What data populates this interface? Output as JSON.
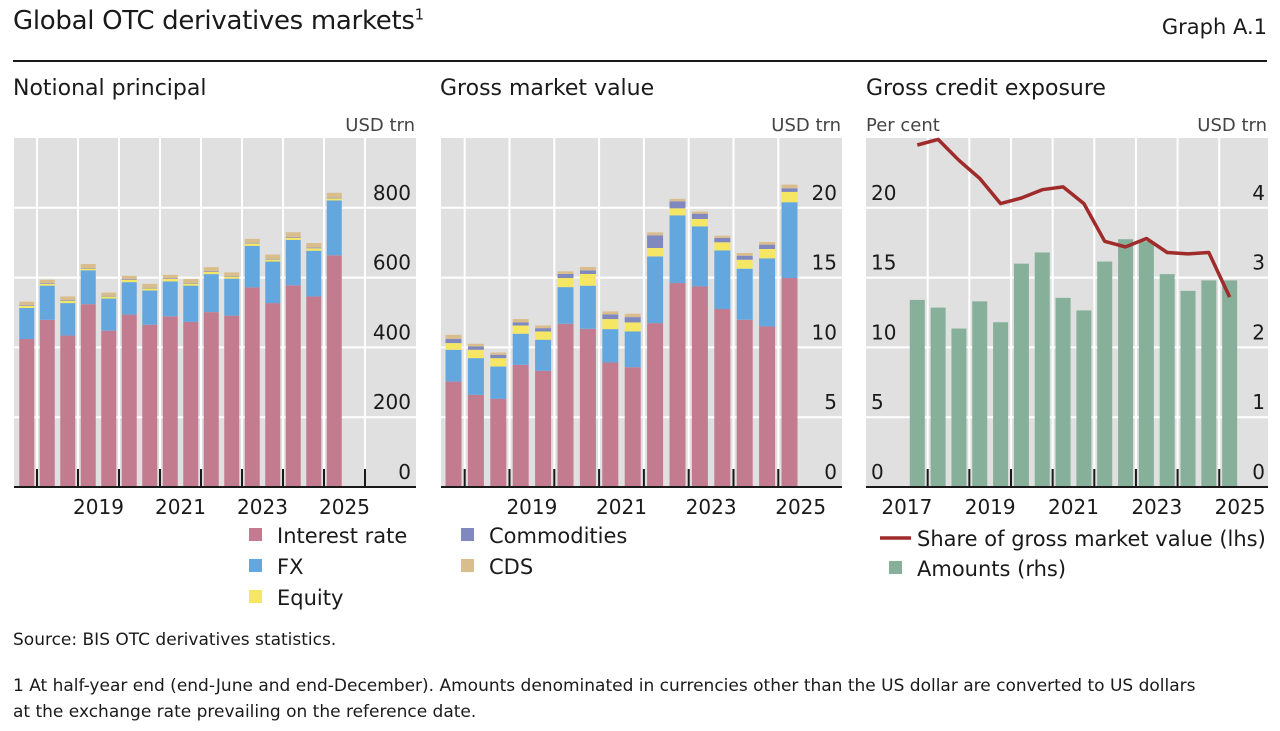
{
  "header": {
    "title": "Global OTC derivatives markets",
    "title_footnote_marker": "1",
    "graph_id": "Graph A.1"
  },
  "footer": {
    "source": "Source: BIS OTC derivatives statistics.",
    "note_line1": "1  At half-year end (end-June and end-December). Amounts denominated in currencies other than the US dollar are converted to US dollars",
    "note_line2": "at the exchange rate prevailing on the reference date."
  },
  "colors": {
    "interest_rate": "#c27b8f",
    "fx": "#63a7de",
    "equity": "#f5e663",
    "commodities": "#8088c0",
    "cds": "#d9bd8c",
    "share_line": "#a02b2b",
    "amounts": "#86b09a",
    "plot_bg": "#e0e0e0"
  },
  "chart_data": [
    {
      "id": "notional",
      "type": "bar",
      "stacked": true,
      "title": "Notional principal",
      "ylabel_right": "USD trn",
      "ylim": [
        0,
        1000
      ],
      "yticks": [
        0,
        200,
        400,
        600,
        800
      ],
      "xtick_labels": [
        "2019",
        "2021",
        "2023",
        "2025"
      ],
      "x_range_years": [
        2017,
        2026
      ],
      "periods": [
        "2017-H2",
        "2018-H1",
        "2018-H2",
        "2019-H1",
        "2019-H2",
        "2020-H1",
        "2020-H2",
        "2021-H1",
        "2021-H2",
        "2022-H1",
        "2022-H2",
        "2023-H1",
        "2023-H2",
        "2024-H1",
        "2024-H2",
        "2025-H1"
      ],
      "series": [
        {
          "name": "Interest rate",
          "key": "interest_rate",
          "values": [
            424,
            479,
            434,
            524,
            448,
            494,
            465,
            489,
            473,
            501,
            491,
            572,
            527,
            578,
            546,
            664
          ]
        },
        {
          "name": "FX",
          "key": "fx",
          "values": [
            89,
            98,
            93,
            97,
            92,
            93,
            98,
            100,
            104,
            109,
            106,
            119,
            119,
            130,
            131,
            157
          ]
        },
        {
          "name": "Equity",
          "key": "equity",
          "values": [
            6,
            5,
            7,
            5,
            6,
            7,
            6,
            7,
            6,
            7,
            6,
            7,
            6,
            6,
            7,
            6
          ]
        },
        {
          "name": "Commodities",
          "key": "commodities",
          "values": [
            2,
            2,
            2,
            2,
            2,
            2,
            2,
            2,
            2,
            2,
            2,
            2,
            2,
            2,
            2,
            2
          ]
        },
        {
          "name": "CDS",
          "key": "cds",
          "values": [
            10,
            10,
            10,
            11,
            9,
            9,
            11,
            10,
            11,
            11,
            10,
            11,
            12,
            14,
            13,
            14
          ]
        }
      ],
      "legend": [
        "Interest rate",
        "FX",
        "Equity"
      ]
    },
    {
      "id": "gross_market_value",
      "type": "bar",
      "stacked": true,
      "title": "Gross market value",
      "ylabel_right": "USD trn",
      "ylim": [
        0,
        25
      ],
      "yticks": [
        0,
        5,
        10,
        15,
        20
      ],
      "xtick_labels": [
        "2019",
        "2021",
        "2023",
        "2025"
      ],
      "x_range_years": [
        2017,
        2026
      ],
      "periods": [
        "2017-H2",
        "2018-H1",
        "2018-H2",
        "2019-H1",
        "2019-H2",
        "2020-H1",
        "2020-H2",
        "2021-H1",
        "2021-H2",
        "2022-H1",
        "2022-H2",
        "2023-H1",
        "2023-H2",
        "2024-H1",
        "2024-H2",
        "2025-H1"
      ],
      "series": [
        {
          "name": "Interest rate",
          "key": "interest_rate",
          "values": [
            7.55,
            6.6,
            6.31,
            8.75,
            8.32,
            11.69,
            11.33,
            8.92,
            8.58,
            11.74,
            14.61,
            14.37,
            12.75,
            11.98,
            11.5,
            14.97
          ]
        },
        {
          "name": "FX",
          "key": "fx",
          "values": [
            2.28,
            2.63,
            2.32,
            2.23,
            2.23,
            2.63,
            3.09,
            2.39,
            2.56,
            4.78,
            4.85,
            4.3,
            4.2,
            3.66,
            4.88,
            5.43
          ]
        },
        {
          "name": "Equity",
          "key": "equity",
          "values": [
            0.48,
            0.6,
            0.6,
            0.59,
            0.59,
            0.65,
            0.84,
            0.72,
            0.65,
            0.6,
            0.5,
            0.53,
            0.58,
            0.64,
            0.67,
            0.74
          ]
        },
        {
          "name": "Commodities",
          "key": "commodities",
          "values": [
            0.29,
            0.24,
            0.24,
            0.22,
            0.24,
            0.29,
            0.26,
            0.33,
            0.38,
            0.91,
            0.51,
            0.38,
            0.31,
            0.29,
            0.31,
            0.26
          ]
        },
        {
          "name": "CDS",
          "key": "cds",
          "values": [
            0.3,
            0.19,
            0.16,
            0.24,
            0.19,
            0.19,
            0.24,
            0.22,
            0.24,
            0.21,
            0.17,
            0.15,
            0.16,
            0.19,
            0.19,
            0.26
          ]
        }
      ],
      "legend": [
        "Commodities",
        "CDS"
      ]
    },
    {
      "id": "gross_credit_exposure",
      "type": "bar+line",
      "title": "Gross credit exposure",
      "ylabel_left": "Per cent",
      "ylabel_right": "USD trn",
      "ylim_left": [
        0,
        25
      ],
      "yticks_left": [
        0,
        5,
        10,
        15,
        20
      ],
      "ylim_right": [
        0,
        5
      ],
      "yticks_right": [
        0,
        1,
        2,
        3,
        4
      ],
      "xtick_labels": [
        "2017",
        "2019",
        "2021",
        "2023",
        "2025"
      ],
      "x_range_years": [
        2016.5,
        2025.7
      ],
      "periods": [
        "2017-H2",
        "2018-H1",
        "2018-H2",
        "2019-H1",
        "2019-H2",
        "2020-H1",
        "2020-H2",
        "2021-H1",
        "2021-H2",
        "2022-H1",
        "2022-H2",
        "2023-H1",
        "2023-H2",
        "2024-H1",
        "2024-H2",
        "2025-H1"
      ],
      "series": [
        {
          "name": "Share of gross market value (lhs)",
          "key": "share_line",
          "type": "line",
          "axis": "left",
          "values": [
            24.5,
            24.9,
            23.4,
            22.1,
            20.3,
            20.7,
            21.3,
            21.5,
            20.3,
            17.6,
            17.2,
            17.8,
            16.8,
            16.7,
            16.8,
            13.6
          ]
        },
        {
          "name": "Amounts (rhs)",
          "key": "amounts",
          "type": "bar",
          "axis": "right",
          "values": [
            2.68,
            2.57,
            2.27,
            2.66,
            2.36,
            3.2,
            3.36,
            2.71,
            2.53,
            3.23,
            3.55,
            3.52,
            3.05,
            2.81,
            2.96,
            2.96
          ]
        }
      ],
      "legend": [
        "Share of gross market value (lhs)",
        "Amounts (rhs)"
      ]
    }
  ]
}
